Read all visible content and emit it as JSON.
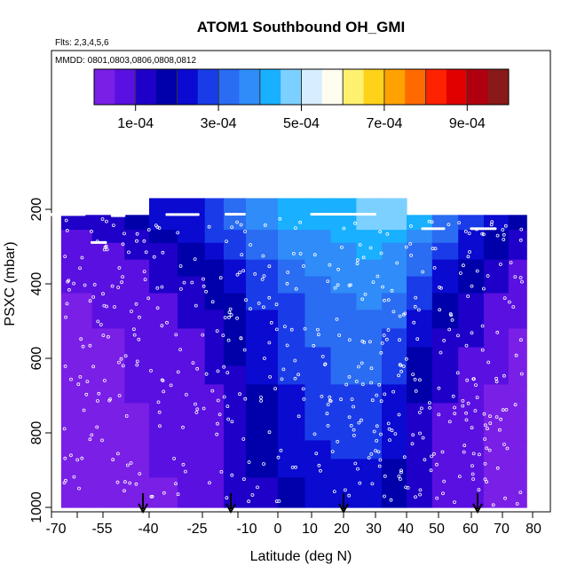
{
  "header": {
    "title": "ATOM1 Southbound OH_GMI",
    "flights_note": "Flts: 2,3,4,5,6",
    "mmdd_note": "MMDD: 0801,0803,0806,0808,0812"
  },
  "colorbar": {
    "colors": [
      "#7a1fe6",
      "#5a10e0",
      "#1e00c8",
      "#0000aa",
      "#0a0ad0",
      "#1a3ce8",
      "#2a6cf2",
      "#2f8cf8",
      "#18b0ff",
      "#7cd0ff",
      "#d6eeff",
      "#fffdf0",
      "#fff170",
      "#ffd21a",
      "#ffa200",
      "#ff6a00",
      "#ff2200",
      "#e00000",
      "#b00010",
      "#8a1a1a"
    ],
    "tick_labels": [
      "1e-04",
      "3e-04",
      "5e-04",
      "7e-04",
      "9e-04"
    ],
    "tick_values": [
      0.0001,
      0.0003,
      0.0005,
      0.0007,
      0.0009
    ],
    "range": [
      0.0,
      0.001
    ]
  },
  "chart_data": {
    "type": "heatmap",
    "title": "ATOM1 Southbound OH_GMI",
    "xlabel": "Latitude (deg N)",
    "ylabel": "PSXC (mbar)",
    "xlim": [
      -70,
      80
    ],
    "ylim": [
      1000,
      0
    ],
    "x_ticks": [
      -70,
      -55,
      -40,
      -25,
      -10,
      0,
      10,
      20,
      30,
      40,
      50,
      60,
      70,
      80
    ],
    "x_tick_labels": [
      "-70",
      "-55",
      "-40",
      "-25",
      "-10",
      "0",
      "10",
      "20",
      "30",
      "40",
      "50",
      "60",
      "70",
      "80"
    ],
    "y_ticks": [
      200,
      400,
      600,
      800,
      1000
    ],
    "y_tick_labels": [
      "200",
      "400",
      "600",
      "800",
      "1000"
    ],
    "pressure_levels": [
      215,
      255,
      290,
      335,
      380,
      425,
      470,
      520,
      570,
      620,
      670,
      720,
      770,
      820,
      870,
      920,
      965,
      1000
    ],
    "lat_bands": [
      {
        "lat0": -67,
        "lat1": -58,
        "p_top": 215,
        "vals": [
          0.0001,
          8e-05,
          7e-05,
          6e-05,
          5e-05,
          4e-05,
          4e-05,
          3e-05,
          3e-05,
          3e-05,
          3e-05,
          3e-05,
          3e-05,
          3e-05,
          3e-05,
          3e-05,
          3e-05
        ]
      },
      {
        "lat0": -58,
        "lat1": -48,
        "p_top": 215,
        "vals": [
          0.00012,
          0.0001,
          8e-05,
          7e-05,
          6e-05,
          5e-05,
          5e-05,
          4e-05,
          4e-05,
          4e-05,
          4e-05,
          4e-05,
          3e-05,
          3e-05,
          3e-05,
          3e-05,
          3e-05
        ]
      },
      {
        "lat0": -48,
        "lat1": -40,
        "p_top": 215,
        "vals": [
          0.00016,
          0.00013,
          0.00011,
          9e-05,
          8e-05,
          7e-05,
          6e-05,
          6e-05,
          5e-05,
          5e-05,
          5e-05,
          4e-05,
          4e-05,
          4e-05,
          4e-05,
          4e-05,
          4e-05
        ]
      },
      {
        "lat0": -40,
        "lat1": -32,
        "p_top": 170,
        "vals": [
          0.0002,
          0.00017,
          0.00014,
          0.00012,
          0.0001,
          9e-05,
          8e-05,
          7e-05,
          6e-05,
          6e-05,
          6e-05,
          5e-05,
          5e-05,
          5e-05,
          5e-05,
          4e-05,
          4e-05
        ]
      },
      {
        "lat0": -32,
        "lat1": -24,
        "p_top": 170,
        "vals": [
          0.00024,
          0.00021,
          0.00018,
          0.00015,
          0.00013,
          0.00011,
          0.0001,
          9e-05,
          8e-05,
          7e-05,
          7e-05,
          6e-05,
          6e-05,
          6e-05,
          5e-05,
          5e-05,
          5e-05
        ]
      },
      {
        "lat0": -24,
        "lat1": -16,
        "p_top": 170,
        "vals": [
          0.00028,
          0.00025,
          0.00022,
          0.00019,
          0.00017,
          0.00015,
          0.00013,
          0.00012,
          0.00011,
          0.0001,
          9e-05,
          9e-05,
          8e-05,
          8e-05,
          7e-05,
          7e-05,
          7e-05
        ]
      },
      {
        "lat0": -16,
        "lat1": -8,
        "p_top": 170,
        "vals": [
          0.00032,
          0.00029,
          0.00026,
          0.00024,
          0.00021,
          0.00019,
          0.00018,
          0.00016,
          0.00015,
          0.00014,
          0.00013,
          0.00012,
          0.00011,
          0.00011,
          0.0001,
          0.0001,
          0.0001
        ]
      },
      {
        "lat0": -8,
        "lat1": 0,
        "p_top": 170,
        "vals": [
          0.00036,
          0.00033,
          0.00031,
          0.00029,
          0.00027,
          0.00025,
          0.00024,
          0.00022,
          0.00021,
          0.0002,
          0.00019,
          0.00018,
          0.00017,
          0.00016,
          0.00015,
          0.00014,
          0.00014
        ]
      },
      {
        "lat0": 0,
        "lat1": 8,
        "p_top": 170,
        "vals": [
          0.0004,
          0.00037,
          0.00035,
          0.00033,
          0.00031,
          0.00029,
          0.00028,
          0.00027,
          0.00026,
          0.00025,
          0.00024,
          0.00023,
          0.00022,
          0.00021,
          0.0002,
          0.00019,
          0.00018
        ]
      },
      {
        "lat0": 8,
        "lat1": 16,
        "p_top": 170,
        "vals": [
          0.00042,
          0.00039,
          0.00037,
          0.00035,
          0.00034,
          0.00032,
          0.00031,
          0.0003,
          0.00029,
          0.00028,
          0.00027,
          0.00026,
          0.00025,
          0.00024,
          0.00023,
          0.00022,
          0.00021
        ]
      },
      {
        "lat0": 16,
        "lat1": 24,
        "p_top": 170,
        "vals": [
          0.00044,
          0.00041,
          0.00039,
          0.00037,
          0.00036,
          0.00034,
          0.00033,
          0.00032,
          0.00031,
          0.0003,
          0.00028,
          0.00027,
          0.00026,
          0.00025,
          0.00024,
          0.00023,
          0.00022
        ]
      },
      {
        "lat0": 24,
        "lat1": 32,
        "p_top": 170,
        "vals": [
          0.00046,
          0.00043,
          0.00041,
          0.00039,
          0.00037,
          0.00035,
          0.00034,
          0.00033,
          0.00031,
          0.0003,
          0.00028,
          0.00027,
          0.00026,
          0.00025,
          0.00024,
          0.00023,
          0.00022
        ]
      },
      {
        "lat0": 32,
        "lat1": 40,
        "p_top": 170,
        "vals": [
          0.00045,
          0.00042,
          0.00039,
          0.00037,
          0.00035,
          0.00033,
          0.00031,
          0.00029,
          0.00027,
          0.00025,
          0.00023,
          0.00022,
          0.00021,
          0.0002,
          0.00019,
          0.00018,
          0.00017
        ]
      },
      {
        "lat0": 40,
        "lat1": 48,
        "p_top": 215,
        "vals": [
          0.0004,
          0.00037,
          0.00034,
          0.00031,
          0.00028,
          0.00025,
          0.00023,
          0.00021,
          0.00019,
          0.00017,
          0.00015,
          0.00014,
          0.00013,
          0.00012,
          0.00011,
          0.0001,
          0.0001
        ]
      },
      {
        "lat0": 48,
        "lat1": 56,
        "p_top": 215,
        "vals": [
          0.00034,
          0.0003,
          0.00027,
          0.00024,
          0.00021,
          0.00018,
          0.00016,
          0.00014,
          0.00012,
          0.00011,
          0.0001,
          9e-05,
          8e-05,
          8e-05,
          7e-05,
          7e-05,
          6e-05
        ]
      },
      {
        "lat0": 56,
        "lat1": 64,
        "p_top": 215,
        "vals": [
          0.00028,
          0.00024,
          0.00021,
          0.00018,
          0.00015,
          0.00013,
          0.00011,
          0.0001,
          9e-05,
          8e-05,
          7e-05,
          6e-05,
          6e-05,
          5e-05,
          5e-05,
          5e-05,
          5e-05
        ]
      },
      {
        "lat0": 64,
        "lat1": 72,
        "p_top": 215,
        "vals": [
          0.00022,
          0.00018,
          0.00015,
          0.00012,
          0.0001,
          8e-05,
          7e-05,
          6e-05,
          5e-05,
          5e-05,
          4e-05,
          4e-05,
          4e-05,
          4e-05,
          3e-05,
          3e-05,
          3e-05
        ]
      },
      {
        "lat0": 72,
        "lat1": 78,
        "p_top": 215,
        "vals": [
          0.00018,
          0.00014,
          0.00011,
          9e-05,
          7e-05,
          6e-05,
          5e-05,
          4e-05,
          4e-05,
          3e-05,
          3e-05,
          3e-05,
          3e-05,
          3e-05,
          3e-05,
          3e-05,
          3e-05
        ]
      }
    ],
    "arrow_latitudes": [
      -42,
      -13,
      20,
      62
    ]
  }
}
